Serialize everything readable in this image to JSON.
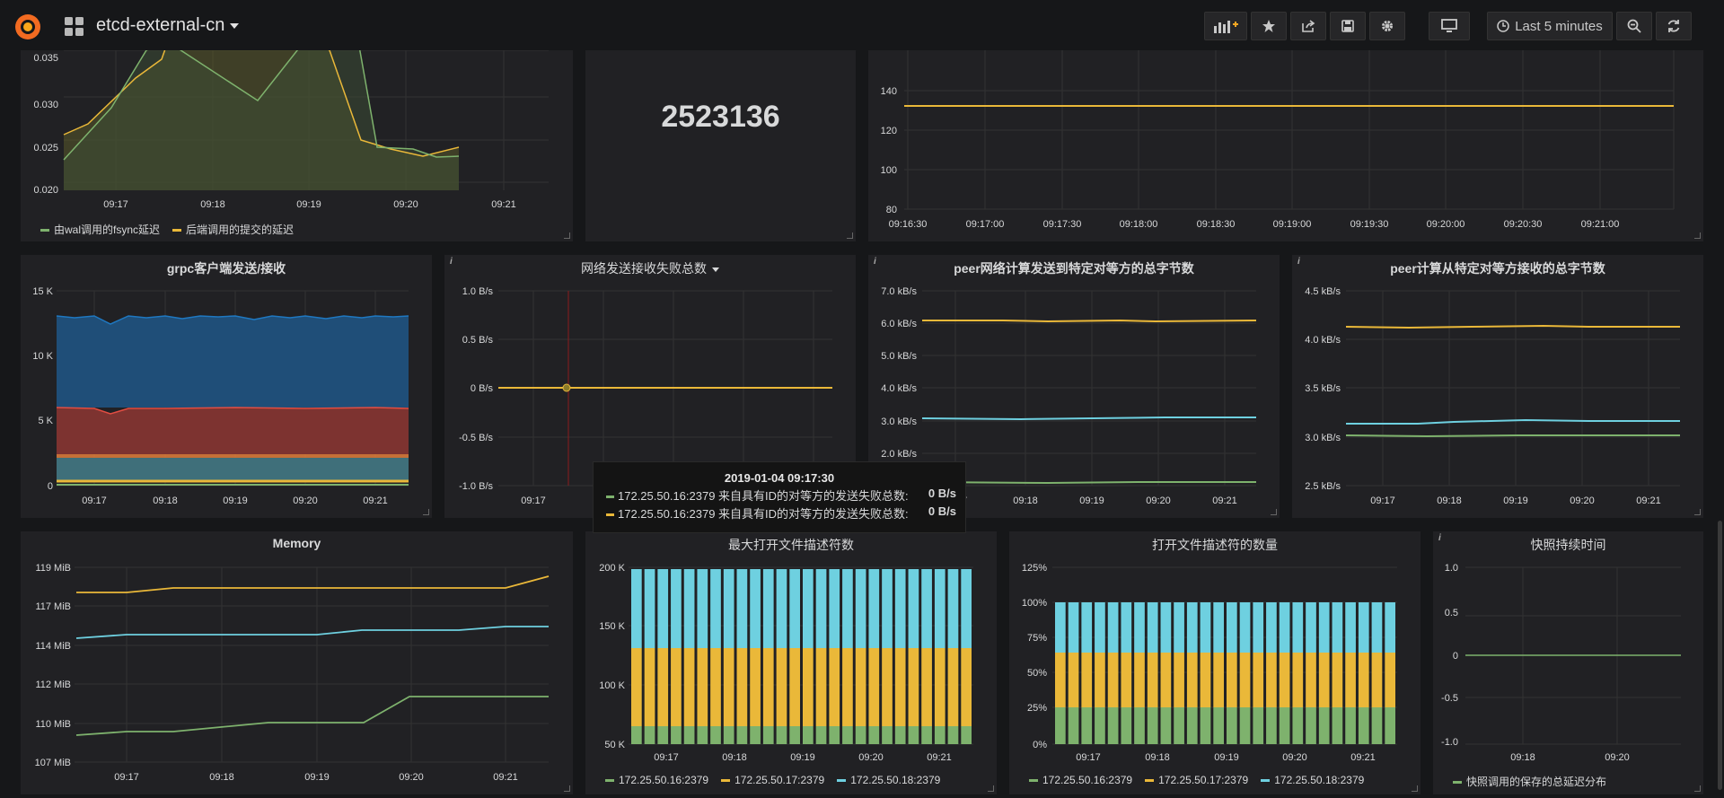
{
  "header": {
    "title": "etcd-external-cn",
    "time_range": "Last 5 minutes"
  },
  "colors": {
    "green": "#7eb26d",
    "yellow": "#eab839",
    "cyan": "#6ed0e0",
    "blue": "#1f78c1",
    "red": "#e24d42",
    "bg": "#161719",
    "panel": "#212124"
  },
  "panels": {
    "wal": {
      "yticks": [
        "0.035",
        "0.030",
        "0.025",
        "0.020"
      ],
      "xticks": [
        "09:17",
        "09:18",
        "09:19",
        "09:20",
        "09:21"
      ],
      "legend": [
        "由wal调用的fsync延迟",
        "后端调用的提交的延迟"
      ]
    },
    "stat": {
      "value": "2523136"
    },
    "topright": {
      "yticks": [
        "140",
        "120",
        "100",
        "80"
      ],
      "xticks": [
        "09:16:30",
        "09:17:00",
        "09:17:30",
        "09:18:00",
        "09:18:30",
        "09:19:00",
        "09:19:30",
        "09:20:00",
        "09:20:30",
        "09:21:00"
      ]
    },
    "grpc": {
      "title": "grpc客户端发送/接收",
      "yticks": [
        "15 K",
        "10 K",
        "5 K",
        "0"
      ],
      "xticks": [
        "09:17",
        "09:18",
        "09:19",
        "09:20",
        "09:21"
      ]
    },
    "netfail": {
      "title": "网络发送接收失败总数",
      "yticks": [
        "1.0 B/s",
        "0.5 B/s",
        "0 B/s",
        "-0.5 B/s",
        "-1.0 B/s"
      ],
      "xticks": [
        "09:17"
      ]
    },
    "peersend": {
      "title": "peer网络计算发送到特定对等方的总字节数",
      "yticks": [
        "7.0 kB/s",
        "6.0 kB/s",
        "5.0 kB/s",
        "4.0 kB/s",
        "3.0 kB/s",
        "2.0 kB/s"
      ],
      "xticks": [
        "7",
        "09:18",
        "09:19",
        "09:20",
        "09:21"
      ]
    },
    "peerrecv": {
      "title": "peer计算从特定对等方接收的总字节数",
      "yticks": [
        "4.5 kB/s",
        "4.0 kB/s",
        "3.5 kB/s",
        "3.0 kB/s",
        "2.5 kB/s"
      ],
      "xticks": [
        "09:17",
        "09:18",
        "09:19",
        "09:20",
        "09:21"
      ]
    },
    "memory": {
      "title": "Memory",
      "yticks": [
        "119 MiB",
        "117 MiB",
        "114 MiB",
        "112 MiB",
        "110 MiB",
        "107 MiB"
      ],
      "xticks": [
        "09:17",
        "09:18",
        "09:19",
        "09:20",
        "09:21"
      ]
    },
    "maxfd": {
      "title": "最大打开文件描述符数",
      "yticks": [
        "200 K",
        "150 K",
        "100 K",
        "50 K"
      ],
      "xticks": [
        "09:17",
        "09:18",
        "09:19",
        "09:20",
        "09:21"
      ],
      "legend": [
        "172.25.50.16:2379",
        "172.25.50.17:2379",
        "172.25.50.18:2379"
      ]
    },
    "openfd": {
      "title": "打开文件描述符的数量",
      "yticks": [
        "125%",
        "100%",
        "75%",
        "50%",
        "25%",
        "0%"
      ],
      "xticks": [
        "09:17",
        "09:18",
        "09:19",
        "09:20",
        "09:21"
      ],
      "legend": [
        "172.25.50.16:2379",
        "172.25.50.17:2379",
        "172.25.50.18:2379"
      ]
    },
    "snapshot": {
      "title": "快照持续时间",
      "yticks": [
        "1.0",
        "0.5",
        "0",
        "-0.5",
        "-1.0"
      ],
      "xticks": [
        "09:18",
        "09:20"
      ],
      "legend": [
        "快照调用的保存的总延迟分布"
      ]
    }
  },
  "tooltip": {
    "title": "2019-01-04 09:17:30",
    "rows": [
      {
        "label": "172.25.50.16:2379 来自具有ID的对等方的发送失败总数:",
        "value": "0 B/s"
      },
      {
        "label": "172.25.50.16:2379 来自具有ID的对等方的发送失败总数:",
        "value": "0 B/s"
      }
    ]
  }
}
